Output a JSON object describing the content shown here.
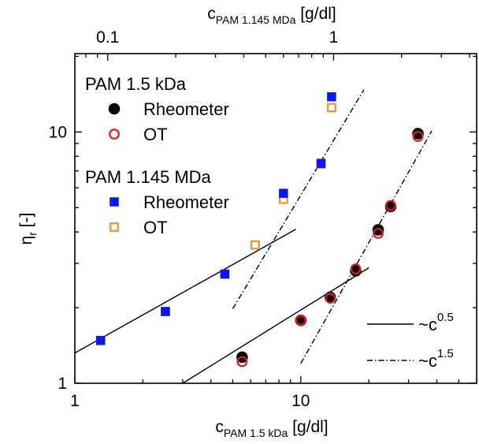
{
  "chart_data": {
    "type": "scatter",
    "x_axis_bottom": {
      "label_main": "c",
      "label_sub": "PAM 1.5 kDa",
      "label_unit": " [g/dl]",
      "scale": "log",
      "range": [
        1,
        60
      ],
      "tick_labels": [
        {
          "value": 1,
          "text": "1"
        },
        {
          "value": 10,
          "text": "10"
        }
      ]
    },
    "x_axis_top": {
      "label_main": "c",
      "label_sub": "PAM 1.145 MDa",
      "label_unit": " [g/dl]",
      "scale": "log",
      "range": [
        0.0715,
        4.3
      ],
      "tick_labels": [
        {
          "value": 0.1,
          "text": "0.1"
        },
        {
          "value": 1,
          "text": "1"
        }
      ]
    },
    "y_axis": {
      "label_main": "η",
      "label_sub": "r",
      "label_unit": " [-]",
      "scale": "log",
      "range": [
        1,
        20.5
      ],
      "tick_labels": [
        {
          "value": 1,
          "text": "1"
        },
        {
          "value": 10,
          "text": "10"
        }
      ]
    },
    "grid": false,
    "legend": {
      "groups": [
        {
          "title": "PAM 1.5 kDa",
          "entries": [
            {
              "label": "Rheometer",
              "marker": "filled-circle",
              "color": "#000000"
            },
            {
              "label": "OT",
              "marker": "open-circle",
              "color": "#e8141b"
            }
          ]
        },
        {
          "title": "PAM 1.145 MDa",
          "entries": [
            {
              "label": "Rheometer",
              "marker": "filled-square",
              "color": "#0a18ee"
            },
            {
              "label": "OT",
              "marker": "open-square",
              "color": "#f09030"
            }
          ]
        }
      ],
      "fit_entries": [
        {
          "label_main": "~c",
          "label_sup": "0.5",
          "style": "solid"
        },
        {
          "label_main": "~c",
          "label_sup": "1.5",
          "style": "dashdot"
        }
      ]
    },
    "series": [
      {
        "name": "PAM 1.5 kDa Rheometer",
        "axis": "bottom",
        "marker": "filled-circle",
        "color": "#000000",
        "x": [
          5.5,
          10.0,
          13.5,
          17.5,
          22.0,
          25.0,
          33.0
        ],
        "y": [
          1.27,
          1.78,
          2.2,
          2.8,
          4.08,
          5.05,
          9.85
        ]
      },
      {
        "name": "PAM 1.5 kDa OT",
        "axis": "bottom",
        "marker": "open-circle",
        "color": "#e8141b",
        "x": [
          5.5,
          10.0,
          13.5,
          17.5,
          22.0,
          25.0,
          33.0
        ],
        "y": [
          1.22,
          1.78,
          2.18,
          2.85,
          3.95,
          5.1,
          9.6
        ]
      },
      {
        "name": "PAM 1.145 MDa Rheometer",
        "axis": "top",
        "marker": "filled-square",
        "color": "#0a18ee",
        "x": [
          0.093,
          0.18,
          0.33,
          0.6,
          0.88,
          0.98
        ],
        "y": [
          1.48,
          1.93,
          2.72,
          5.7,
          7.5,
          13.8
        ]
      },
      {
        "name": "PAM 1.145 MDa OT",
        "axis": "top",
        "marker": "open-square",
        "color": "#f09030",
        "x": [
          0.093,
          0.18,
          0.33,
          0.45,
          0.6,
          0.88,
          0.98
        ],
        "y": [
          1.48,
          1.93,
          2.72,
          3.55,
          5.4,
          7.45,
          12.5
        ]
      }
    ],
    "fit_lines": [
      {
        "exponent": 0.5,
        "style": "solid",
        "axis": "bottom",
        "x": [
          1.0,
          9.5
        ],
        "y": [
          1.32,
          4.1
        ]
      },
      {
        "exponent": 0.5,
        "style": "solid",
        "axis": "bottom",
        "x": [
          3.0,
          20.0
        ],
        "y": [
          1.0,
          2.88
        ]
      },
      {
        "exponent": 1.5,
        "style": "dashdot",
        "axis": "bottom",
        "x": [
          5.0,
          19.0
        ],
        "y": [
          1.98,
          14.7
        ]
      },
      {
        "exponent": 1.5,
        "style": "dashdot",
        "axis": "bottom",
        "x": [
          10.0,
          38.0
        ],
        "y": [
          1.2,
          10.1
        ]
      }
    ]
  }
}
